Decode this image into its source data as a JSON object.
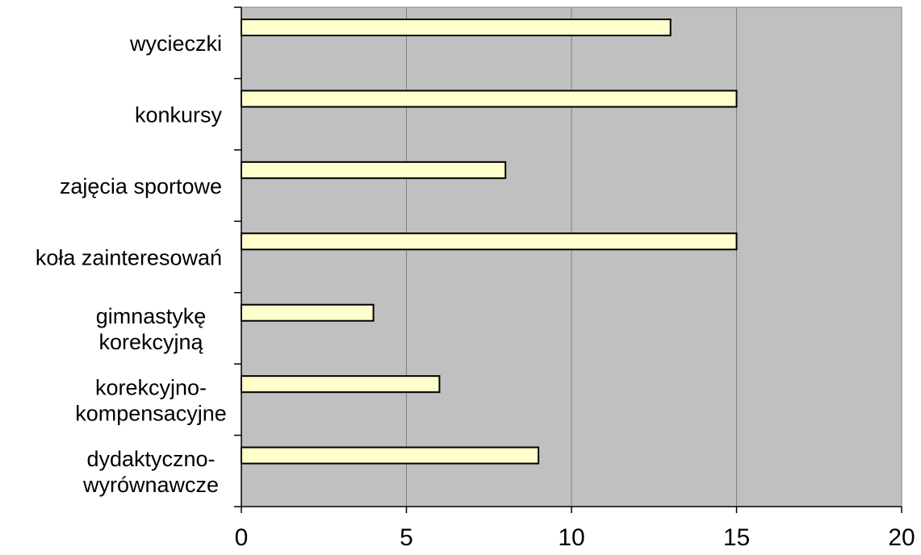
{
  "chart_data": {
    "type": "bar",
    "orientation": "horizontal",
    "categories": [
      [
        "dydaktyczno-",
        "wyrównawcze"
      ],
      [
        "korekcyjno-",
        "kompensacyjne"
      ],
      [
        "gimnastykę",
        "korekcyjną"
      ],
      [
        "koła zainteresowań"
      ],
      [
        "zajęcia sportowe"
      ],
      [
        "konkursy"
      ],
      [
        "wycieczki"
      ]
    ],
    "values": [
      9,
      6,
      4,
      15,
      8,
      15,
      13
    ],
    "xlim": [
      0,
      20
    ],
    "xticks": [
      "0",
      "5",
      "10",
      "15",
      "20"
    ],
    "grid": true,
    "legend": "none",
    "colors": {
      "plot_background": "#c0c0c0",
      "bar_fill": "#ffffcc",
      "bar_stroke": "#000000",
      "gridline": "#808080"
    }
  }
}
